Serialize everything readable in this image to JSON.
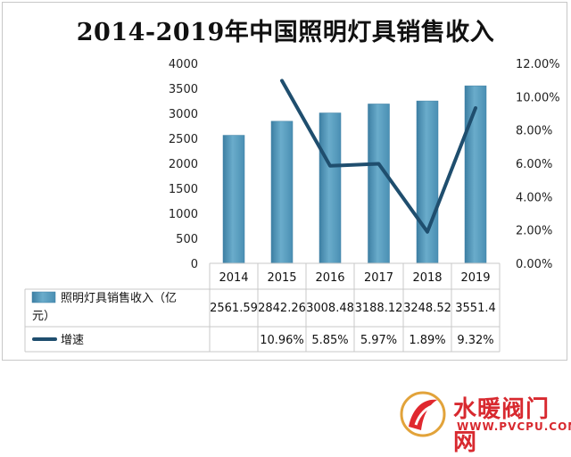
{
  "chart_data": {
    "type": "bar+line",
    "title": "2014-2019年中国照明灯具销售收入",
    "categories": [
      "2014",
      "2015",
      "2016",
      "2017",
      "2018",
      "2019"
    ],
    "series": [
      {
        "name": "照明灯具销售收入（亿元）",
        "type": "bar",
        "axis": "left",
        "values": [
          2561.59,
          2842.26,
          3008.48,
          3188.12,
          3248.52,
          3551.4
        ],
        "labels": [
          "2561.59",
          "2842.26",
          "3008.48",
          "3188.12",
          "3248.52",
          "3551.4"
        ]
      },
      {
        "name": "增速",
        "type": "line",
        "axis": "right",
        "values": [
          null,
          10.96,
          5.85,
          5.97,
          1.89,
          9.32
        ],
        "labels": [
          "",
          "10.96%",
          "5.85%",
          "5.97%",
          "1.89%",
          "9.32%"
        ]
      }
    ],
    "y_left": {
      "min": 0,
      "max": 4000,
      "step": 500,
      "ticks": [
        "0",
        "500",
        "1000",
        "1500",
        "2000",
        "2500",
        "3000",
        "3500",
        "4000"
      ]
    },
    "y_right": {
      "min": 0,
      "max": 12,
      "step": 2,
      "ticks": [
        "0.00%",
        "2.00%",
        "4.00%",
        "6.00%",
        "8.00%",
        "10.00%",
        "12.00%"
      ]
    },
    "grid": false,
    "legend": "data-table",
    "colors": {
      "bar": "#5b9bbd",
      "bar_dark": "#3d7fa3",
      "line": "#1f4e6e"
    }
  },
  "watermark": {
    "title": "水暖阀门网",
    "url": "WWW.PVCPU.COM"
  }
}
